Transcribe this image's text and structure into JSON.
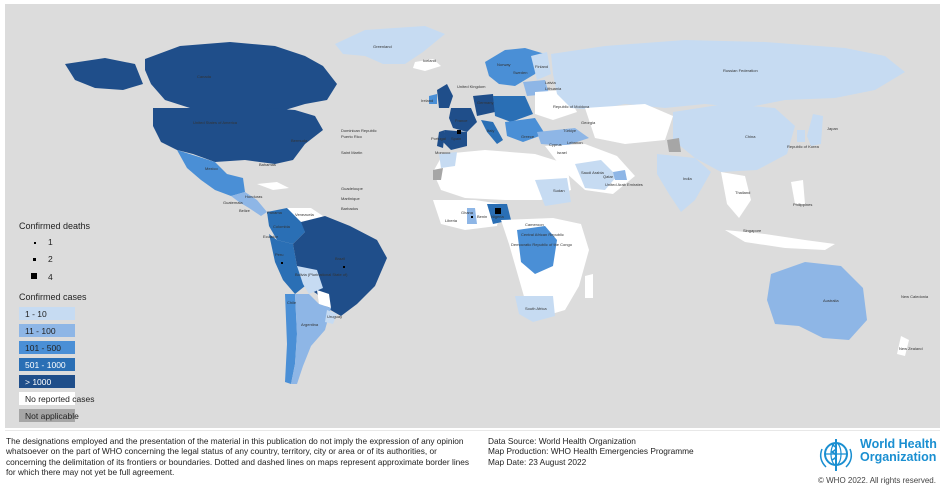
{
  "map": {
    "title": "",
    "colors": {
      "ocean": "#dcdcdc",
      "no_cases": "#ffffff",
      "not_applicable": "#a6a6a6",
      "c1_10": "#c6dbf2",
      "c11_100": "#8eb6e6",
      "c101_500": "#4a8fd6",
      "c501_1000": "#2a6fb5",
      "c1000plus": "#1f4e8a"
    },
    "country_labels": [
      "Greenland",
      "Iceland",
      "Canada",
      "United States of America",
      "Mexico",
      "Bermuda",
      "Dominican Republic",
      "Puerto Rico",
      "Bahamas",
      "Saint Martin",
      "Guadeloupe",
      "Martinique",
      "Barbados",
      "Honduras",
      "Panama",
      "Guatemala",
      "Belize",
      "Venezuela",
      "Colombia",
      "Ecuador",
      "Peru",
      "Brazil",
      "Bolivia (Plurinational State of)",
      "Chile",
      "Argentina",
      "Uruguay",
      "Russian Federation",
      "United Kingdom",
      "Ireland",
      "France",
      "Portugal",
      "Spain",
      "Italy",
      "Germany",
      "Norway",
      "Sweden",
      "Finland",
      "Latvia",
      "Lithuania",
      "Republic of Moldova",
      "Türkiye",
      "Georgia",
      "Greece",
      "Cyprus",
      "Lebanon",
      "Israel",
      "Morocco",
      "Sudan",
      "Saudi Arabia",
      "Qatar",
      "United Arab Emirates",
      "India",
      "China",
      "Republic of Korea",
      "Japan",
      "Thailand",
      "Philippines",
      "Singapore",
      "Ghana",
      "Nigeria",
      "Liberia",
      "Benin",
      "Cameroon",
      "Central African Republic",
      "Democratic Republic of the Congo",
      "South Africa",
      "Australia",
      "New Caledonia",
      "New Zealand"
    ]
  },
  "legend": {
    "deaths_title": "Confirmed deaths",
    "deaths": [
      {
        "label": "1"
      },
      {
        "label": "2"
      },
      {
        "label": "4"
      }
    ],
    "cases_title": "Confirmed cases",
    "cases": [
      {
        "label": "1 - 10",
        "color": "#c6dbf2"
      },
      {
        "label": "11 - 100",
        "color": "#8eb6e6"
      },
      {
        "label": "101 - 500",
        "color": "#4a8fd6"
      },
      {
        "label": "501 - 1000",
        "color": "#2a6fb5"
      },
      {
        "label": "> 1000",
        "color": "#1f4e8a"
      },
      {
        "label": "No reported cases",
        "color": "#ffffff"
      },
      {
        "label": "Not applicable",
        "color": "#a6a6a6"
      }
    ]
  },
  "footer": {
    "disclaimer": "The designations employed and the presentation of the material in this publication do not imply the expression of any opinion whatsoever on the part of WHO concerning the legal status of any country, territory, city or area or of its authorities, or concerning the delimitation of its frontiers or boundaries. Dotted and dashed lines on maps represent approximate border lines for which there may not yet be full agreement.",
    "data_source": "Data Source: World Health Organization",
    "map_production": "Map Production: WHO Health Emergencies Programme",
    "map_date": "Map Date: 23 August 2022",
    "who_line1": "World Health",
    "who_line2": "Organization",
    "copyright": "© WHO 2022. All rights reserved."
  }
}
